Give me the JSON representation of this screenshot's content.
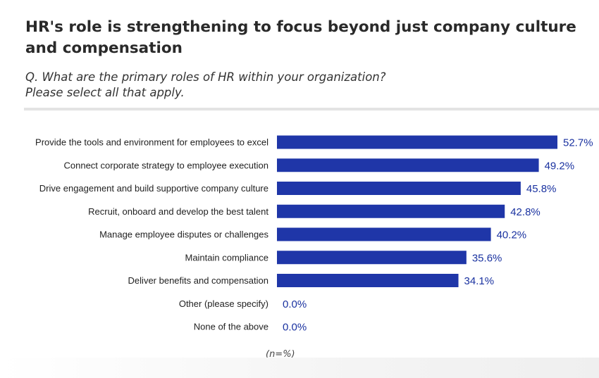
{
  "title": "HR's role is strengthening to focus beyond just company culture and compensation",
  "subtitle_line1": "Q. What are the primary roles of HR within your organization?",
  "subtitle_line2": "Please select all that apply.",
  "footnote": "(n=%)",
  "colors": {
    "bar": "#1f36a8",
    "value_text": "#1a32a0"
  },
  "chart_data": {
    "type": "bar",
    "orientation": "horizontal",
    "categories": [
      "Provide the tools and environment for employees to excel",
      "Connect corporate strategy to employee execution",
      "Drive engagement and build supportive company culture",
      "Recruit, onboard and develop the best talent",
      "Manage employee disputes or challenges",
      "Maintain compliance",
      "Deliver benefits and compensation",
      "Other (please specify)",
      "None of the above"
    ],
    "values": [
      52.7,
      49.2,
      45.8,
      42.8,
      40.2,
      35.6,
      34.1,
      0.0,
      0.0
    ],
    "value_labels": [
      "52.7%",
      "49.2%",
      "45.8%",
      "42.8%",
      "40.2%",
      "35.6%",
      "34.1%",
      "0.0%",
      "0.0%"
    ],
    "title": "HR's role is strengthening to focus beyond just company culture and compensation",
    "xlabel": "",
    "ylabel": "",
    "xlim": [
      0,
      52.7
    ],
    "grid": false,
    "legend": "none"
  }
}
